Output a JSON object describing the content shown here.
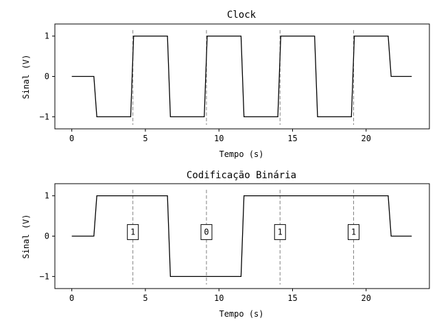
{
  "chart_data": [
    {
      "type": "line",
      "title": "Clock",
      "xlabel": "Tempo (s)",
      "ylabel": "Sinal (V)",
      "xlim": [
        -1.15,
        24.3
      ],
      "ylim": [
        -1.3,
        1.3
      ],
      "xticks": [
        0,
        5,
        10,
        15,
        20
      ],
      "yticks": [
        -1,
        0,
        1
      ],
      "xtick_labels": [
        "0",
        "5",
        "10",
        "15",
        "20"
      ],
      "ytick_labels": [
        "−1",
        "0",
        "1"
      ],
      "series": [
        {
          "color": "#000000",
          "x": [
            0,
            1.5,
            1.7,
            4,
            4.2,
            6.5,
            6.7,
            9,
            9.2,
            11.5,
            11.7,
            14,
            14.2,
            16.5,
            16.7,
            19,
            19.2,
            21.5,
            21.7,
            23.1
          ],
          "y": [
            0,
            0,
            -1,
            -1,
            1,
            1,
            -1,
            -1,
            1,
            1,
            -1,
            -1,
            1,
            1,
            -1,
            -1,
            1,
            1,
            0,
            0
          ]
        }
      ],
      "vlines": [
        4.15,
        9.15,
        14.15,
        19.15
      ],
      "vline_color": "#808080"
    },
    {
      "type": "line",
      "title": "Codificação Binária",
      "xlabel": "Tempo (s)",
      "ylabel": "Sinal (V)",
      "xlim": [
        -1.15,
        24.3
      ],
      "ylim": [
        -1.3,
        1.3
      ],
      "xticks": [
        0,
        5,
        10,
        15,
        20
      ],
      "yticks": [
        -1,
        0,
        1
      ],
      "xtick_labels": [
        "0",
        "5",
        "10",
        "15",
        "20"
      ],
      "ytick_labels": [
        "−1",
        "0",
        "1"
      ],
      "series": [
        {
          "color": "#000000",
          "x": [
            0,
            1.5,
            1.7,
            6.5,
            6.7,
            11.5,
            11.7,
            21.5,
            21.7,
            23.1
          ],
          "y": [
            0,
            0,
            1,
            1,
            -1,
            -1,
            1,
            1,
            0,
            0
          ]
        }
      ],
      "vlines": [
        4.15,
        9.15,
        14.15,
        19.15
      ],
      "vline_color": "#808080",
      "annotations": [
        {
          "x": 4.15,
          "y": 0.1,
          "text": "1"
        },
        {
          "x": 9.15,
          "y": 0.1,
          "text": "0"
        },
        {
          "x": 14.15,
          "y": 0.1,
          "text": "1"
        },
        {
          "x": 19.15,
          "y": 0.1,
          "text": "1"
        }
      ]
    }
  ]
}
